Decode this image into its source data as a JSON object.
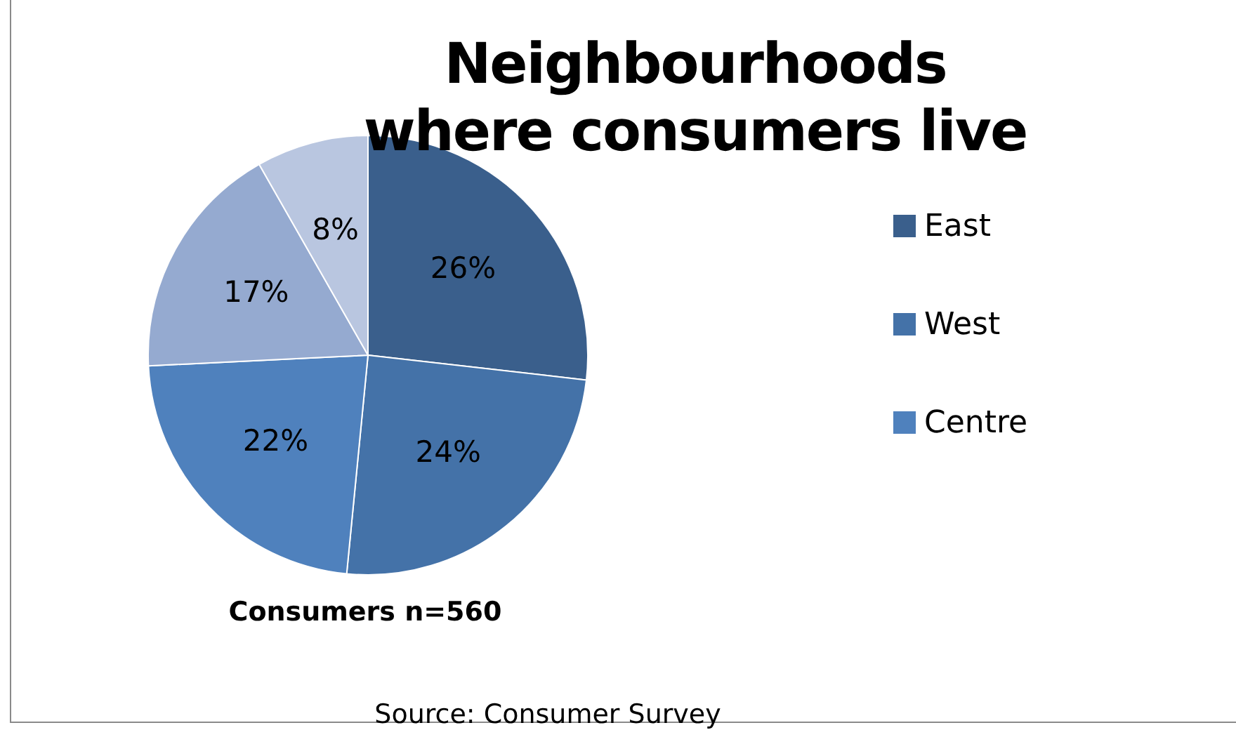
{
  "chart_data": {
    "type": "pie",
    "title": "Neighbourhoods where consumers live",
    "categories": [
      "East",
      "West",
      "Centre",
      null,
      null
    ],
    "values": [
      26,
      24,
      22,
      17,
      8
    ],
    "value_labels": [
      "26%",
      "24%",
      "22%",
      "17%",
      "8%"
    ],
    "colors": [
      "#3a5f8c",
      "#4472a8",
      "#4f81bd",
      "#95aad0",
      "#b9c6e0"
    ],
    "legend": "right",
    "annotations": [
      "Consumers n=560",
      "Source: Consumer Survey"
    ]
  }
}
